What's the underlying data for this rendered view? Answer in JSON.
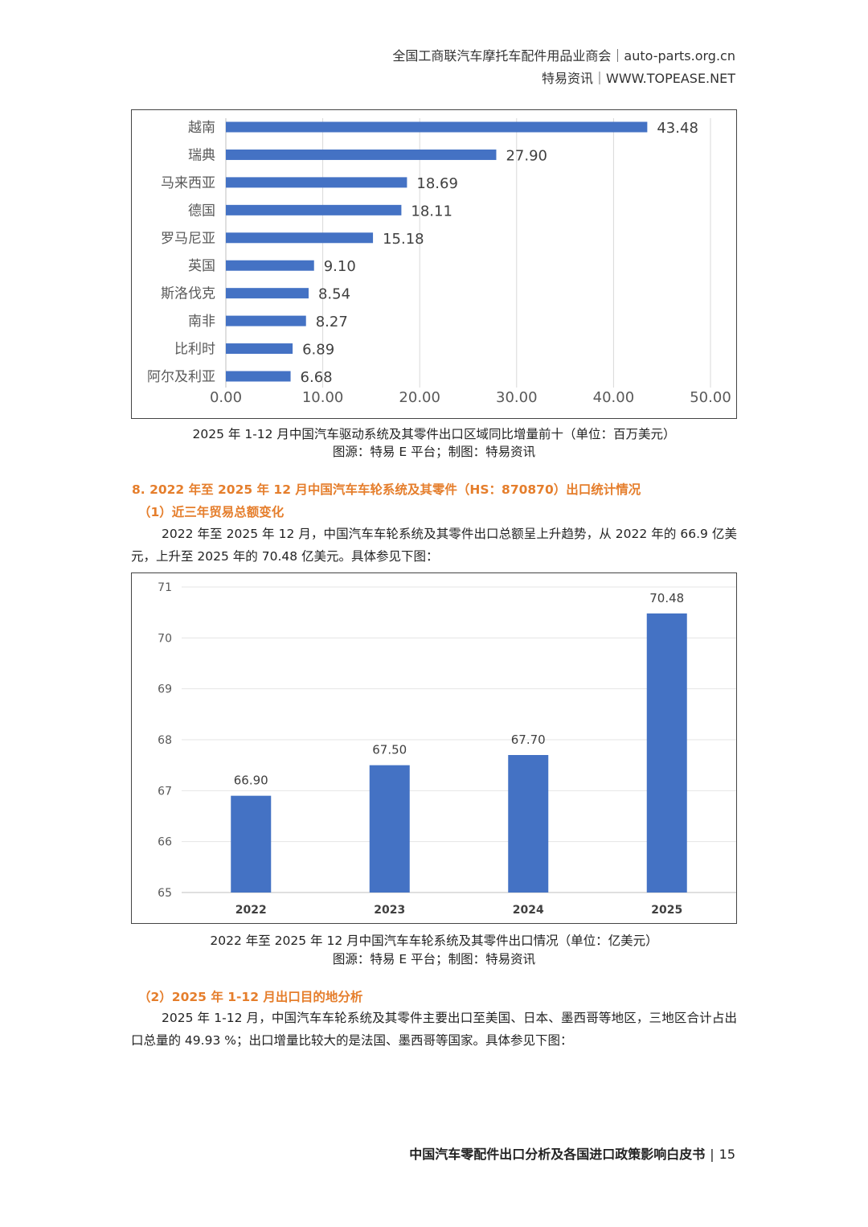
{
  "header": {
    "line1": "全国工商联汽车摩托车配件用品业商会｜auto-parts.org.cn",
    "line2": "特易资讯｜WWW.TOPEASE.NET"
  },
  "chart_data": [
    {
      "type": "bar",
      "orientation": "horizontal",
      "categories": [
        "越南",
        "瑞典",
        "马来西亚",
        "德国",
        "罗马尼亚",
        "英国",
        "斯洛伐克",
        "南非",
        "比利时",
        "阿尔及利亚"
      ],
      "values": [
        43.48,
        27.9,
        18.69,
        18.11,
        15.18,
        9.1,
        8.54,
        8.27,
        6.89,
        6.68
      ],
      "value_labels": [
        "43.48",
        "27.90",
        "18.69",
        "18.11",
        "15.18",
        "9.10",
        "8.54",
        "8.27",
        "6.89",
        "6.68"
      ],
      "xlim": [
        0,
        50
      ],
      "x_ticks": [
        "0.00",
        "10.00",
        "20.00",
        "30.00",
        "40.00",
        "50.00"
      ],
      "color": "#4472c4",
      "grid": "vertical"
    },
    {
      "type": "bar",
      "categories": [
        "2022",
        "2023",
        "2024",
        "2025"
      ],
      "values": [
        66.9,
        67.5,
        67.7,
        70.48
      ],
      "value_labels": [
        "66.90",
        "67.50",
        "67.70",
        "70.48"
      ],
      "ylim": [
        65,
        71
      ],
      "y_ticks": [
        "65",
        "66",
        "67",
        "68",
        "69",
        "70",
        "71"
      ],
      "color": "#4472c4",
      "grid": "horizontal"
    }
  ],
  "captions": {
    "chart1_title": "2025 年 1-12 月中国汽车驱动系统及其零件出口区域同比增量前十（单位：百万美元）",
    "chart1_source": "图源：特易 E 平台；制图：特易资讯",
    "chart2_title": "2022 年至 2025 年 12 月中国汽车车轮系统及其零件出口情况（单位：亿美元）",
    "chart2_source": "图源：特易 E 平台；制图：特易资讯"
  },
  "section": {
    "heading": "8. 2022 年至 2025 年 12 月中国汽车车轮系统及其零件（HS：870870）出口统计情况",
    "sub1": "（1）近三年贸易总额变化",
    "para1": "2022 年至 2025 年 12 月，中国汽车车轮系统及其零件出口总额呈上升趋势，从 2022 年的 66.9 亿美元，上升至 2025 年的 70.48 亿美元。具体参见下图：",
    "sub2": "（2）2025 年 1-12 月出口目的地分析",
    "para2": "2025 年 1-12 月，中国汽车车轮系统及其零件主要出口至美国、日本、墨西哥等地区，三地区合计占出口总量的 49.93 %；出口增量比较大的是法国、墨西哥等国家。具体参见下图："
  },
  "footer": {
    "title": "中国汽车零配件出口分析及各国进口政策影响白皮书",
    "separator": "|",
    "page": "15"
  }
}
